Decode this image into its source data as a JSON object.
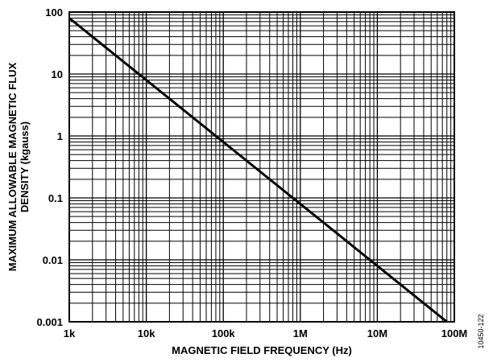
{
  "chart_data": {
    "type": "line",
    "x_scale": "log",
    "y_scale": "log",
    "xlabel": "MAGNETIC FIELD FREQUENCY (Hz)",
    "ylabel_lines": [
      "MAXIMUM ALLOWABLE MAGNETIC FLUX",
      "DENSITY (kgauss)"
    ],
    "xlim": [
      1000,
      100000000
    ],
    "ylim": [
      0.001,
      100
    ],
    "x_ticks": [
      1000,
      10000,
      100000,
      1000000,
      10000000,
      100000000
    ],
    "x_tick_labels": [
      "1k",
      "10k",
      "100k",
      "1M",
      "10M",
      "100M"
    ],
    "y_ticks": [
      0.001,
      0.01,
      0.1,
      1,
      10,
      100
    ],
    "y_tick_labels": [
      "0.001",
      "0.01",
      "0.1",
      "1",
      "10",
      "100"
    ],
    "grid": true,
    "series": [
      {
        "x": [
          1000,
          10000,
          100000,
          1000000,
          10000000,
          80000000
        ],
        "y": [
          80,
          8,
          0.8,
          0.08,
          0.008,
          0.001
        ]
      }
    ],
    "figure_id": "10450-122",
    "colors": {
      "line": "#000000",
      "grid": "#000000",
      "background": "#ffffff"
    }
  }
}
